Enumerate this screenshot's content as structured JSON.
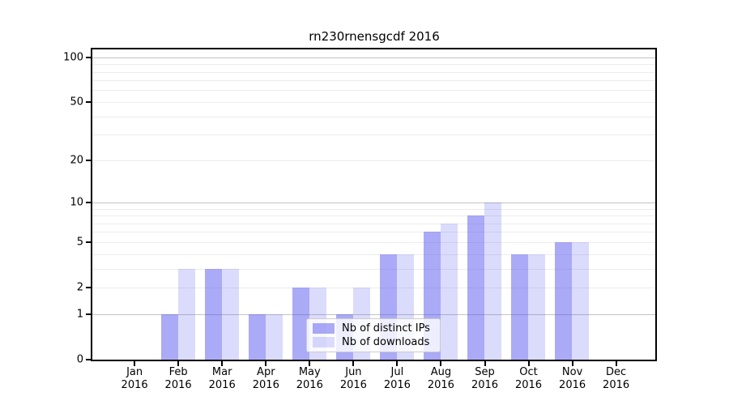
{
  "page": {
    "background": "#ffffff"
  },
  "chart_title": "rn230rnensgcdf 2016",
  "colors": {
    "distinct_ips": "rgba(85,85,240,0.5)",
    "downloads": "rgba(85,85,240,0.21)",
    "grid_major": "#c3c3c3",
    "grid_minor": "#ececec",
    "axis_border": "#000000",
    "text": "#000000",
    "legend_background": "rgba(255,255,255,0.8)",
    "legend_border": "#cccccc"
  },
  "legend": {
    "items": [
      {
        "label": "Nb of distinct IPs",
        "color_key": "distinct_ips"
      },
      {
        "label": "Nb of downloads",
        "color_key": "downloads"
      }
    ]
  },
  "axes": {
    "y_tick_labels": [
      "0",
      "1",
      "2",
      "5",
      "10",
      "20",
      "50",
      "100"
    ],
    "y_tick_values": [
      0,
      1,
      2,
      5,
      10,
      20,
      50,
      100
    ],
    "y_major_grid_values": [
      1,
      10,
      100
    ],
    "y_minor_grid_values": [
      2,
      3,
      4,
      5,
      6,
      7,
      8,
      9,
      20,
      30,
      40,
      50,
      60,
      70,
      80,
      90
    ],
    "y_scale": "log10(1+y)",
    "y_range": [
      0,
      110
    ]
  },
  "chart_data": {
    "type": "bar",
    "title": "rn230rnensgcdf 2016",
    "categories": [
      "Jan 2016",
      "Feb 2016",
      "Mar 2016",
      "Apr 2016",
      "May 2016",
      "Jun 2016",
      "Jul 2016",
      "Aug 2016",
      "Sep 2016",
      "Oct 2016",
      "Nov 2016",
      "Dec 2016"
    ],
    "series": [
      {
        "name": "Nb of distinct IPs",
        "color_key": "distinct_ips",
        "values": [
          0,
          1,
          3,
          1,
          2,
          1,
          4,
          6,
          8,
          4,
          5,
          0
        ]
      },
      {
        "name": "Nb of downloads",
        "color_key": "downloads",
        "values": [
          0,
          3,
          3,
          1,
          2,
          2,
          4,
          7,
          10,
          4,
          5,
          0
        ]
      }
    ],
    "xlabel": "",
    "ylabel": "",
    "yticks": [
      0,
      1,
      2,
      5,
      10,
      20,
      50,
      100
    ],
    "yscale": "log1p",
    "ylim": [
      0,
      110
    ],
    "grid": true,
    "legend_position": "lower center inside plot"
  }
}
